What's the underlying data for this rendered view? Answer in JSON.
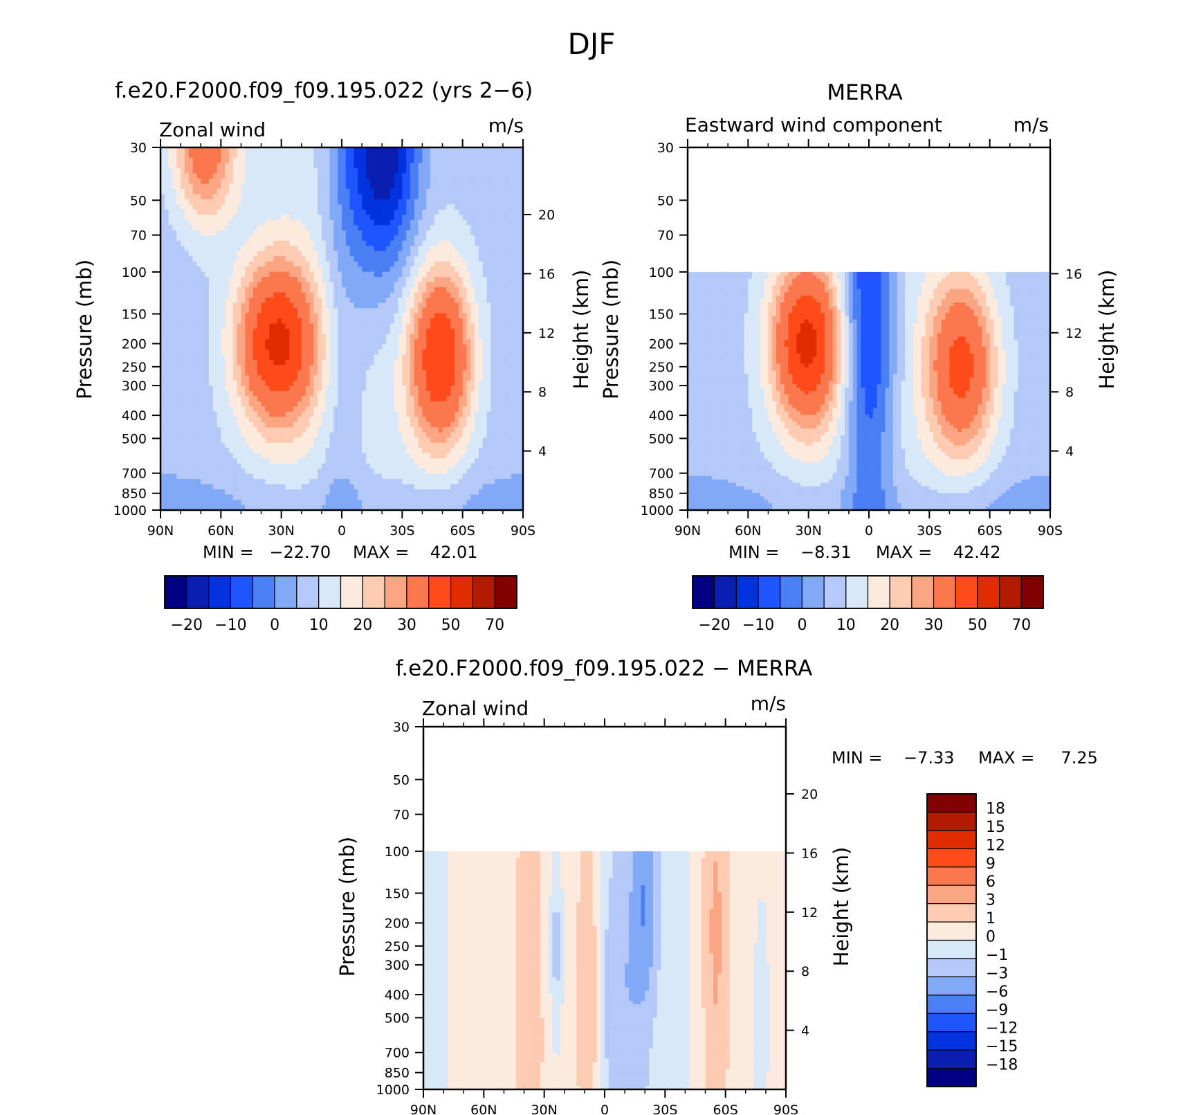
{
  "figure": {
    "title": "DJF"
  },
  "colors": {
    "palette": [
      "#000080",
      "#0a1fb2",
      "#0033dd",
      "#1f55ff",
      "#4a7ff5",
      "#82a8f8",
      "#b4c9f8",
      "#d9e8f8",
      "#fdeadf",
      "#fccbb1",
      "#fca583",
      "#fb774d",
      "#ff4b19",
      "#e02d00",
      "#b31b00",
      "#800000"
    ]
  },
  "chart_data": [
    {
      "id": "model",
      "type": "heatmap",
      "title": "f.e20.F2000.f09_f09.195.022 (yrs 2−6)",
      "left_label": "Zonal wind",
      "right_label": "m/s",
      "ylabel": "Pressure (mb)",
      "y2label": "Height (km)",
      "x_ticks": [
        "90N",
        "60N",
        "30N",
        "0",
        "30S",
        "60S",
        "90S"
      ],
      "y_ticks": [
        30,
        50,
        70,
        100,
        150,
        200,
        250,
        300,
        400,
        500,
        700,
        850,
        1000
      ],
      "y2_ticks": [
        20,
        16,
        12,
        8,
        4
      ],
      "min_text": "MIN =   −22.70",
      "max_text": "MAX =    42.01",
      "colorbar_labels": [
        "−20",
        "−10",
        "0",
        "10",
        "20",
        "30",
        "50",
        "70"
      ],
      "field": {
        "data_top_pressure": 30,
        "jets": [
          {
            "lat": 32,
            "p": 200,
            "peak": 42,
            "sx": 14,
            "sp": 0.55
          },
          {
            "lat": -49,
            "p": 230,
            "peak": 40,
            "sx": 11,
            "sp": 0.6
          },
          {
            "lat": 68,
            "p": 30,
            "peak": 28,
            "sx": 11,
            "sp": 0.5
          }
        ],
        "easterly": {
          "lat": -20,
          "p": 30,
          "peak": -22,
          "sx": 13,
          "sp": 0.9
        }
      }
    },
    {
      "id": "obs",
      "type": "heatmap",
      "title": "MERRA",
      "left_label": "Eastward wind component",
      "right_label": "m/s",
      "ylabel": "Pressure (mb)",
      "y2label": "Height (km)",
      "x_ticks": [
        "90N",
        "60N",
        "30N",
        "0",
        "30S",
        "60S",
        "90S"
      ],
      "y_ticks": [
        30,
        50,
        70,
        100,
        150,
        200,
        250,
        300,
        400,
        500,
        700,
        850,
        1000
      ],
      "y2_ticks": [
        16,
        12,
        8,
        4
      ],
      "min_text": "MIN =    −8.31",
      "max_text": "MAX =    42.42",
      "colorbar_labels": [
        "−20",
        "−10",
        "0",
        "10",
        "20",
        "30",
        "50",
        "70"
      ],
      "field": {
        "data_top_pressure": 100,
        "jets": [
          {
            "lat": 31,
            "p": 200,
            "peak": 42,
            "sx": 12,
            "sp": 0.55
          },
          {
            "lat": -46,
            "p": 250,
            "peak": 34,
            "sx": 12,
            "sp": 0.6
          }
        ],
        "easterly": {
          "lat": 0,
          "p": 150,
          "peak": -8,
          "sx": 10,
          "sp": 1.2
        }
      }
    },
    {
      "id": "diff",
      "type": "heatmap",
      "title": "f.e20.F2000.f09_f09.195.022 − MERRA",
      "left_label": "Zonal wind",
      "right_label": "m/s",
      "ylabel": "Pressure (mb)",
      "y2label": "Height (km)",
      "x_ticks": [
        "90N",
        "60N",
        "30N",
        "0",
        "30S",
        "60S",
        "90S"
      ],
      "y_ticks": [
        30,
        50,
        70,
        100,
        150,
        200,
        250,
        300,
        400,
        500,
        700,
        850,
        1000
      ],
      "y2_ticks": [
        20,
        16,
        12,
        8,
        4
      ],
      "min_text": "MIN =    −7.33",
      "max_text": "MAX =     7.25",
      "colorbar_labels": [
        "18",
        "15",
        "12",
        "9",
        "6",
        "3",
        "1",
        "0",
        "−1",
        "−3",
        "−6",
        "−9",
        "−12",
        "−15",
        "−18"
      ],
      "field": {
        "data_top_pressure": 100
      }
    }
  ]
}
